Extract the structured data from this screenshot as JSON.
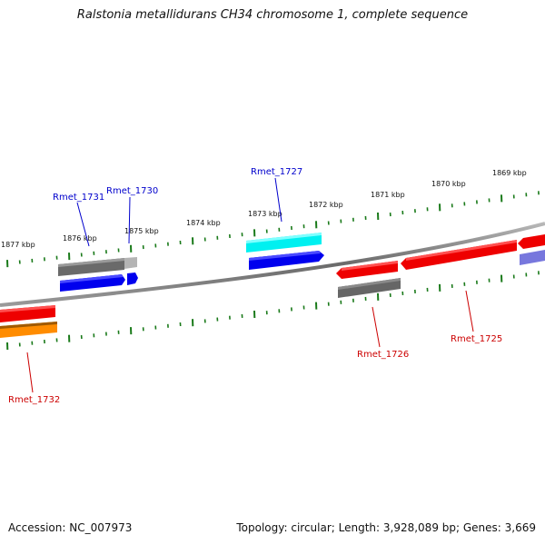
{
  "title": "Ralstonia metallidurans CH34 chromosome 1, complete sequence",
  "footer": {
    "accession": "Accession: NC_007973",
    "summary": "Topology: circular; Length: 3,928,089 bp; Genes: 3,669"
  },
  "tick_labels": [
    "1877 kbp",
    "1876 kbp",
    "1875 kbp",
    "1874 kbp",
    "1873 kbp",
    "1872 kbp",
    "1871 kbp",
    "1870 kbp",
    "1869 kbp"
  ],
  "gene_labels": {
    "rmet_1731": "Rmet_1731",
    "rmet_1730": "Rmet_1730",
    "rmet_1727": "Rmet_1727",
    "rmet_1726": "Rmet_1726",
    "rmet_1725": "Rmet_1725",
    "rmet_1732": "Rmet_1732"
  },
  "colors": {
    "backbone": "#808080",
    "tick": "#1a7a1a",
    "forward_label": "#0000cc",
    "reverse_label": "#cc0000",
    "blue": "#0000ee",
    "cyan": "#00f0f0",
    "gray": "#666666",
    "light_gray": "#b0b0b0",
    "red": "#ee0000",
    "orange": "#ff8c00",
    "lavender": "#7777dd"
  }
}
